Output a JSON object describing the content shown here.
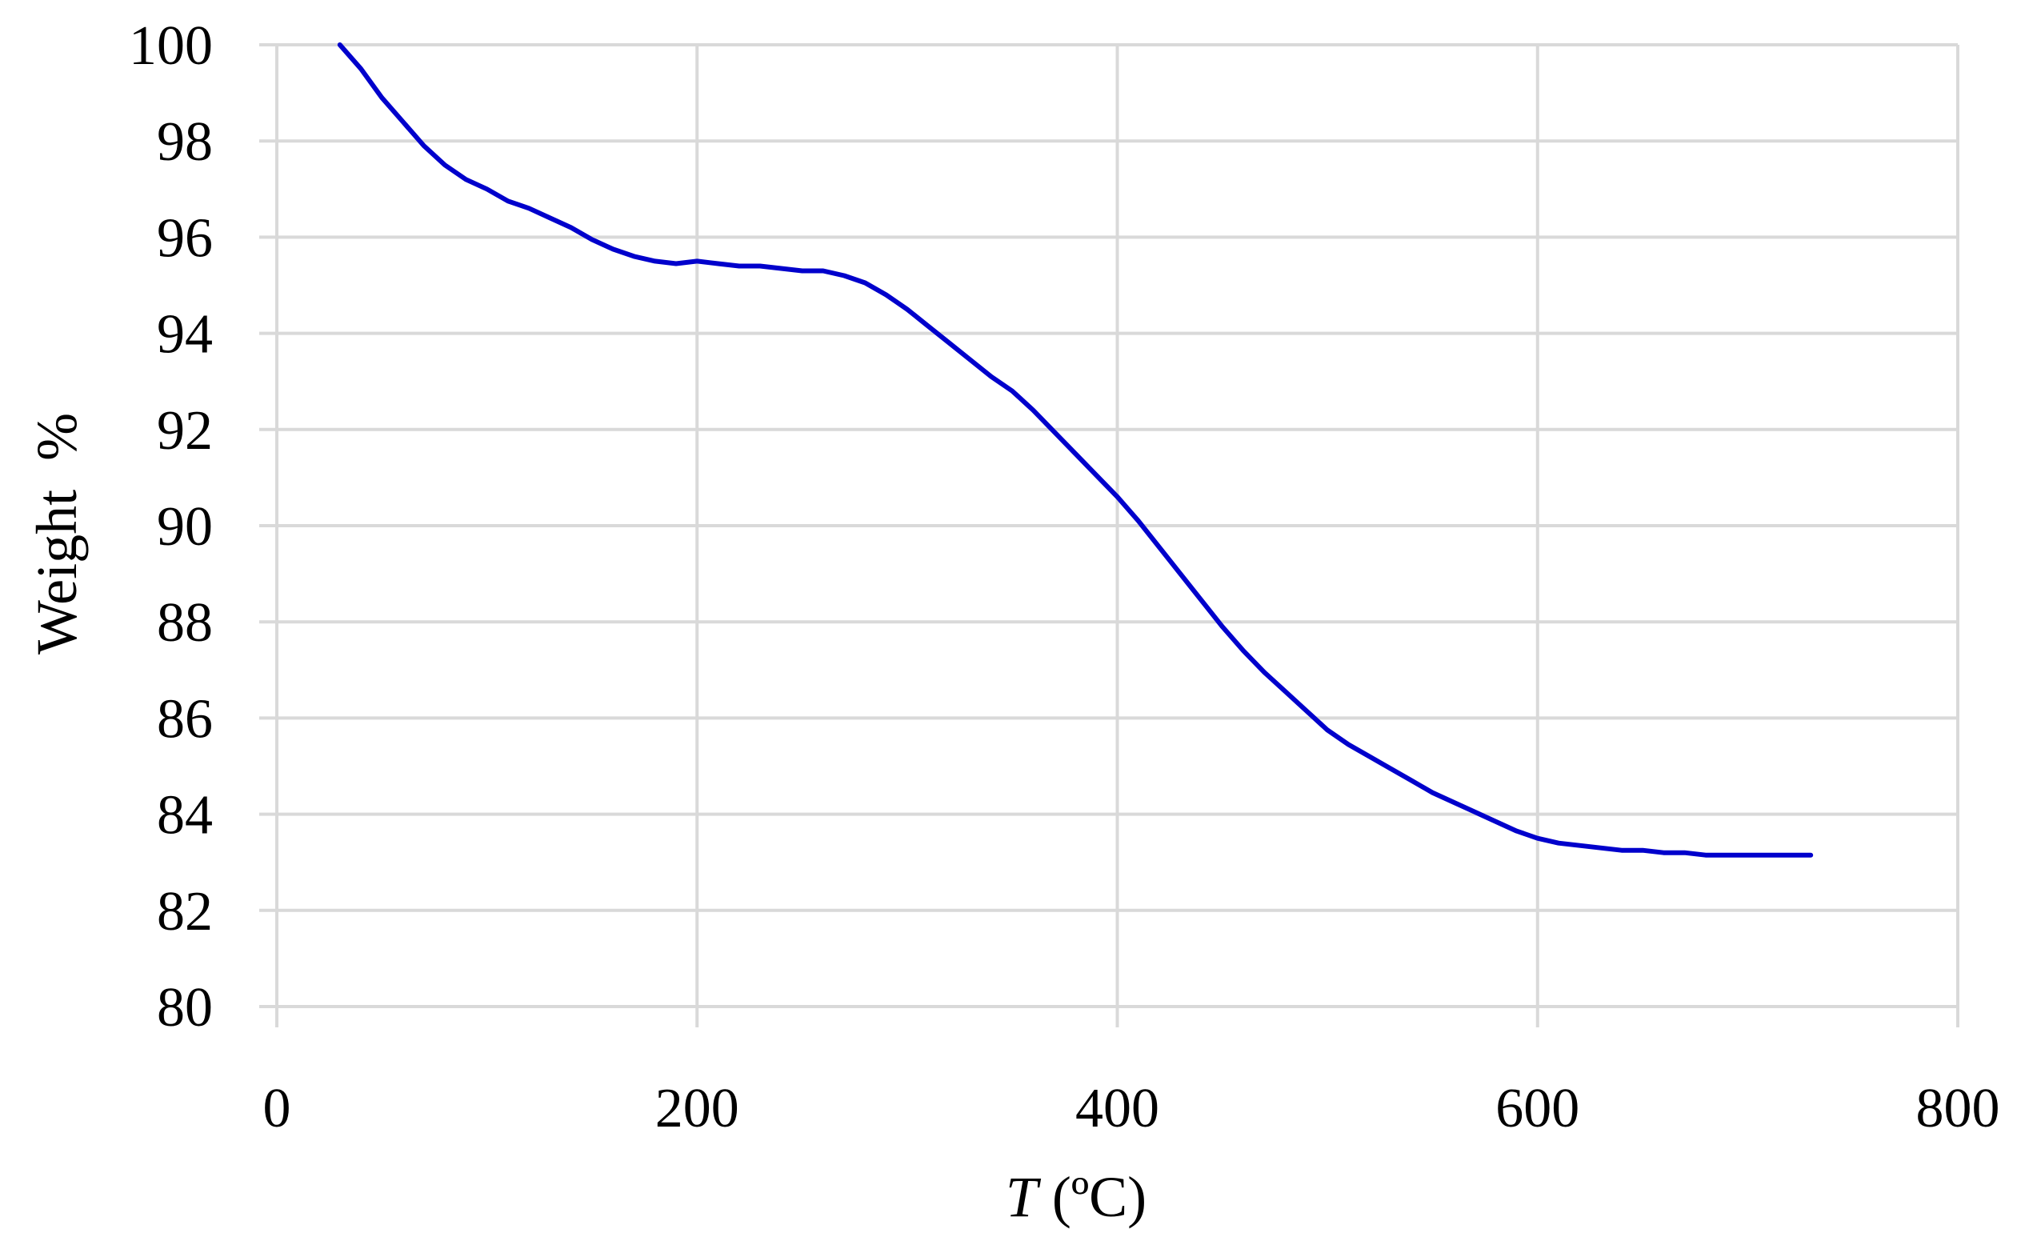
{
  "chart_data": {
    "type": "line",
    "title": "",
    "xlabel": "T (ºC)",
    "xlabel_var": "T",
    "xlabel_unit": " (ºC)",
    "ylabel": "Weight  %",
    "xlim": [
      0,
      800
    ],
    "ylim": [
      80,
      100
    ],
    "x_ticks": [
      0,
      200,
      400,
      600,
      800
    ],
    "y_ticks": [
      80,
      82,
      84,
      86,
      88,
      90,
      92,
      94,
      96,
      98,
      100
    ],
    "x_tick_labels": [
      "0",
      "200",
      "400",
      "600",
      "800"
    ],
    "y_tick_labels": [
      "80",
      "82",
      "84",
      "86",
      "88",
      "90",
      "92",
      "94",
      "96",
      "98",
      "100"
    ],
    "grid": true,
    "series_color": "#0000cc",
    "series": [
      {
        "x": [
          30,
          40,
          50,
          60,
          70,
          80,
          90,
          100,
          110,
          120,
          130,
          140,
          150,
          160,
          170,
          180,
          190,
          200,
          210,
          220,
          230,
          240,
          250,
          260,
          270,
          280,
          290,
          300,
          310,
          320,
          330,
          340,
          350,
          360,
          370,
          380,
          390,
          400,
          410,
          420,
          430,
          440,
          450,
          460,
          470,
          480,
          490,
          500,
          510,
          520,
          530,
          540,
          550,
          560,
          570,
          580,
          590,
          600,
          610,
          620,
          630,
          640,
          650,
          660,
          670,
          680,
          690,
          700,
          710,
          720,
          730
        ],
        "y": [
          100.0,
          99.5,
          98.9,
          98.4,
          97.9,
          97.5,
          97.2,
          97.0,
          96.75,
          96.6,
          96.4,
          96.2,
          95.95,
          95.75,
          95.6,
          95.5,
          95.45,
          95.5,
          95.45,
          95.4,
          95.4,
          95.35,
          95.3,
          95.3,
          95.2,
          95.05,
          94.8,
          94.5,
          94.15,
          93.8,
          93.45,
          93.1,
          92.8,
          92.4,
          91.95,
          91.5,
          91.05,
          90.6,
          90.1,
          89.55,
          89.0,
          88.45,
          87.9,
          87.4,
          86.95,
          86.55,
          86.15,
          85.75,
          85.45,
          85.2,
          84.95,
          84.7,
          84.45,
          84.25,
          84.05,
          83.85,
          83.65,
          83.5,
          83.4,
          83.35,
          83.3,
          83.25,
          83.25,
          83.2,
          83.2,
          83.15,
          83.15,
          83.15,
          83.15,
          83.15,
          83.15
        ]
      }
    ]
  }
}
